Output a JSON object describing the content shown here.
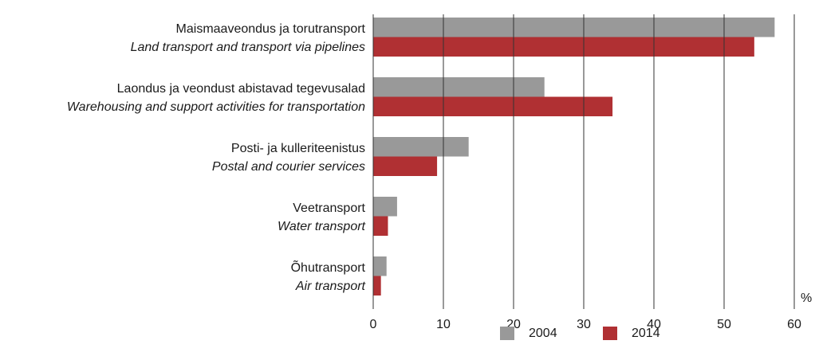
{
  "chart_data": {
    "type": "bar",
    "orientation": "horizontal",
    "categories": [
      "Maismaaveondus ja torutransport",
      "Laondus ja veondust abistavad tegevusalad",
      "Posti- ja kulleriteenistus",
      "Veetransport",
      "Õhutransport"
    ],
    "categories_en": [
      "Land transport and transport via pipelines",
      "Warehousing and support activities for transportation",
      "Postal and courier services",
      "Water transport",
      "Air transport"
    ],
    "series": [
      {
        "name": "2004",
        "color": "#999999",
        "values": [
          57.2,
          24.4,
          13.6,
          3.4,
          1.9
        ]
      },
      {
        "name": "2014",
        "color": "#b03033",
        "values": [
          54.3,
          34.1,
          9.1,
          2.1,
          1.1
        ]
      }
    ],
    "xlim": [
      0,
      60
    ],
    "xticks": [
      0,
      10,
      20,
      30,
      40,
      50,
      60
    ],
    "unit_label": "%",
    "grid": true,
    "legend": "bottom"
  }
}
